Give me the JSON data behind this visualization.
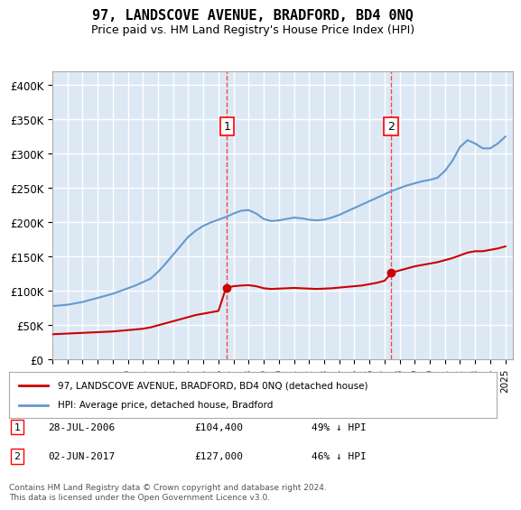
{
  "title": "97, LANDSCOVE AVENUE, BRADFORD, BD4 0NQ",
  "subtitle": "Price paid vs. HM Land Registry's House Price Index (HPI)",
  "ylabel": "",
  "xlabel": "",
  "ylim": [
    0,
    420000
  ],
  "yticks": [
    0,
    50000,
    100000,
    150000,
    200000,
    250000,
    300000,
    350000,
    400000
  ],
  "ytick_labels": [
    "£0",
    "£50K",
    "£100K",
    "£150K",
    "£200K",
    "£250K",
    "£300K",
    "£350K",
    "£400K"
  ],
  "xlim_start": 1995.0,
  "xlim_end": 2025.5,
  "background_color": "#dce9f5",
  "plot_bg_color": "#dce9f5",
  "grid_color": "#ffffff",
  "sale1_x": 2006.57,
  "sale1_y": 104400,
  "sale1_label": "1",
  "sale1_date": "28-JUL-2006",
  "sale1_price": "£104,400",
  "sale1_hpi": "49% ↓ HPI",
  "sale2_x": 2017.42,
  "sale2_y": 127000,
  "sale2_label": "2",
  "sale2_date": "02-JUN-2017",
  "sale2_price": "£127,000",
  "sale2_hpi": "46% ↓ HPI",
  "red_line_color": "#cc0000",
  "blue_line_color": "#6699cc",
  "legend_label_red": "97, LANDSCOVE AVENUE, BRADFORD, BD4 0NQ (detached house)",
  "legend_label_blue": "HPI: Average price, detached house, Bradford",
  "footer": "Contains HM Land Registry data © Crown copyright and database right 2024.\nThis data is licensed under the Open Government Licence v3.0.",
  "hpi_years": [
    1995,
    1995.5,
    1996,
    1996.5,
    1997,
    1997.5,
    1998,
    1998.5,
    1999,
    1999.5,
    2000,
    2000.5,
    2001,
    2001.5,
    2002,
    2002.5,
    2003,
    2003.5,
    2004,
    2004.5,
    2005,
    2005.5,
    2006,
    2006.5,
    2007,
    2007.5,
    2008,
    2008.5,
    2009,
    2009.5,
    2010,
    2010.5,
    2011,
    2011.5,
    2012,
    2012.5,
    2013,
    2013.5,
    2014,
    2014.5,
    2015,
    2015.5,
    2016,
    2016.5,
    2017,
    2017.5,
    2018,
    2018.5,
    2019,
    2019.5,
    2020,
    2020.5,
    2021,
    2021.5,
    2022,
    2022.5,
    2023,
    2023.5,
    2024,
    2024.5,
    2025
  ],
  "hpi_values": [
    78000,
    79000,
    80000,
    82000,
    84000,
    87000,
    90000,
    93000,
    96000,
    100000,
    104000,
    108000,
    113000,
    118000,
    128000,
    140000,
    153000,
    166000,
    179000,
    188000,
    195000,
    200000,
    204000,
    208000,
    213000,
    217000,
    218000,
    213000,
    205000,
    202000,
    203000,
    205000,
    207000,
    206000,
    204000,
    203000,
    204000,
    207000,
    211000,
    216000,
    221000,
    226000,
    231000,
    236000,
    241000,
    246000,
    250000,
    254000,
    257000,
    260000,
    262000,
    265000,
    275000,
    290000,
    310000,
    320000,
    315000,
    308000,
    308000,
    315000,
    325000
  ],
  "red_years": [
    1995,
    1995.5,
    1996,
    1996.5,
    1997,
    1997.5,
    1998,
    1998.5,
    1999,
    1999.5,
    2000,
    2000.5,
    2001,
    2001.5,
    2002,
    2002.5,
    2003,
    2003.5,
    2004,
    2004.5,
    2005,
    2005.5,
    2006,
    2006.5,
    2007,
    2007.5,
    2008,
    2008.5,
    2009,
    2009.5,
    2010,
    2010.5,
    2011,
    2011.5,
    2012,
    2012.5,
    2013,
    2013.5,
    2014,
    2014.5,
    2015,
    2015.5,
    2016,
    2016.5,
    2017,
    2017.5,
    2018,
    2018.5,
    2019,
    2019.5,
    2020,
    2020.5,
    2021,
    2021.5,
    2022,
    2022.5,
    2023,
    2023.5,
    2024,
    2024.5,
    2025
  ],
  "red_values": [
    37000,
    37500,
    38000,
    38500,
    39000,
    39500,
    40000,
    40500,
    41000,
    42000,
    43000,
    44000,
    45000,
    47000,
    50000,
    53000,
    56000,
    59000,
    62000,
    65000,
    67000,
    69000,
    71000,
    104400,
    107000,
    108000,
    108500,
    107000,
    104000,
    103000,
    103500,
    104000,
    104500,
    104000,
    103500,
    103000,
    103500,
    104000,
    105000,
    106000,
    107000,
    108000,
    110000,
    112000,
    115000,
    127000,
    130000,
    133000,
    136000,
    138000,
    140000,
    142000,
    145000,
    148000,
    152000,
    156000,
    158000,
    158000,
    160000,
    162000,
    165000
  ]
}
